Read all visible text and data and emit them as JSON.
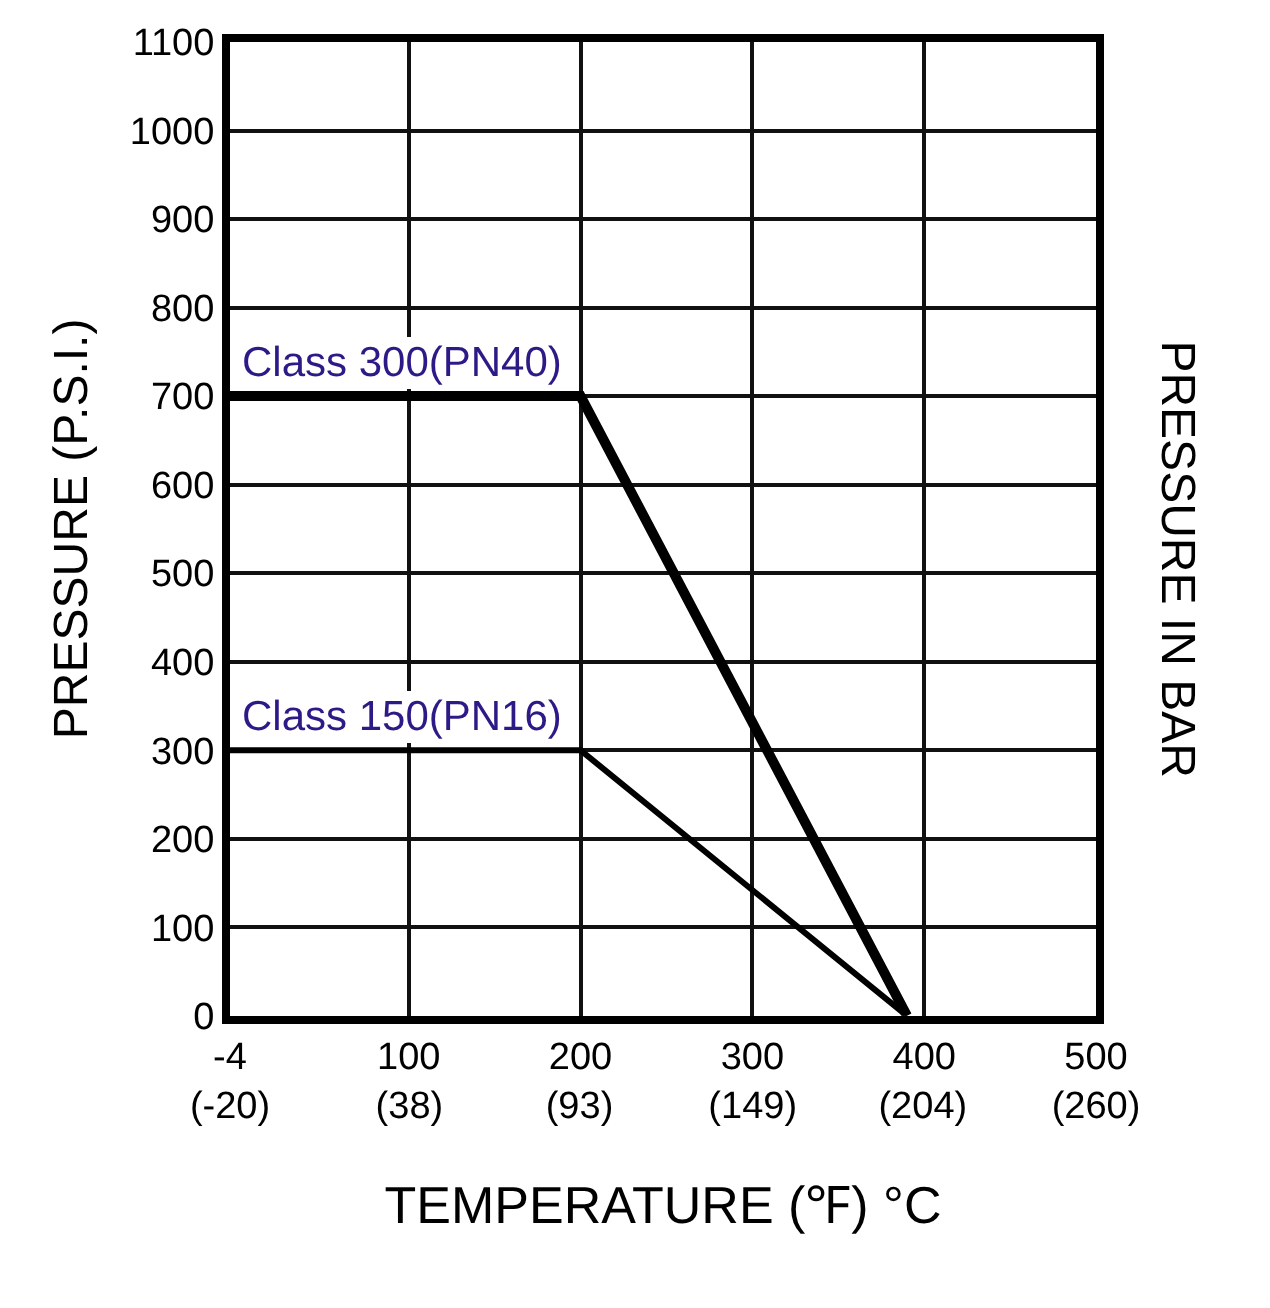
{
  "chart_data": {
    "type": "line",
    "xlabel": "TEMPERATURE (℉) °C",
    "ylabel": "PRESSURE (P.S.I.)",
    "y2label": "PRESSURE IN BAR",
    "series": [
      {
        "name": "Class 300(PN40)",
        "color": "#000000",
        "x": [
          -4,
          200,
          390
        ],
        "values": [
          700,
          700,
          0
        ]
      },
      {
        "name": "Class 150(PN16)",
        "color": "#000000",
        "x": [
          -4,
          200,
          390
        ],
        "values": [
          300,
          300,
          0
        ]
      }
    ],
    "xlim": [
      -4,
      500
    ],
    "xticks": [
      -4,
      100,
      200,
      300,
      400,
      500
    ],
    "x2lim": [
      -20,
      260
    ],
    "x2ticks": [
      {
        "value": -20,
        "label": "(-20)"
      },
      {
        "value": 38,
        "label": "(38)"
      },
      {
        "value": 93,
        "label": "(93)"
      },
      {
        "value": 149,
        "label": "(149)"
      },
      {
        "value": 204,
        "label": "(204)"
      },
      {
        "value": 260,
        "label": "(260)"
      }
    ],
    "ylim": [
      0,
      1100
    ],
    "yticks": [
      0,
      100,
      200,
      300,
      400,
      500,
      600,
      700,
      800,
      900,
      1000,
      1100
    ],
    "grid": true,
    "legend": false,
    "marker": "none",
    "line_style": "solid"
  }
}
